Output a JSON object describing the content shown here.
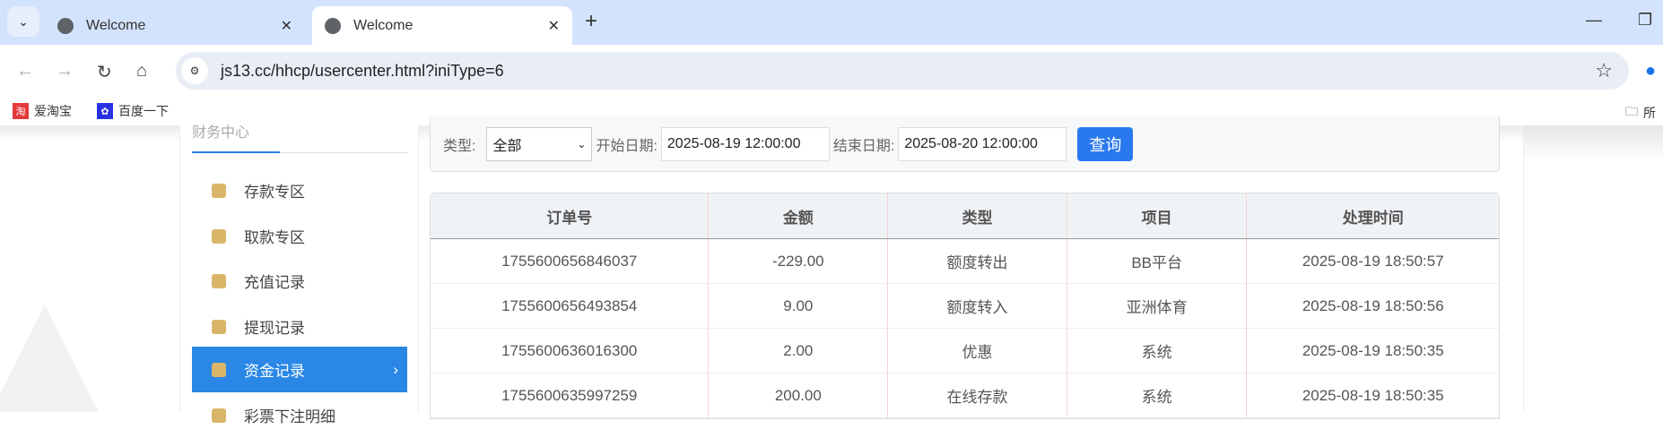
{
  "browser": {
    "tabs": [
      {
        "title": "Welcome",
        "active": false
      },
      {
        "title": "Welcome",
        "active": true
      }
    ],
    "url": "js13.cc/hhcp/usercenter.html?iniType=6",
    "bookmarks": [
      {
        "label": "爱淘宝",
        "icon": "taobao-icon",
        "color": "#e4393c",
        "glyph": "淘"
      },
      {
        "label": "百度一下",
        "icon": "baidu-paw-icon",
        "color": "#2932e1",
        "glyph": "🐾"
      }
    ],
    "bookmarks_folder": "所"
  },
  "sidebar": {
    "title": "财务中心",
    "items": [
      {
        "label": "存款专区",
        "icon": "deposit-card-icon",
        "active": false
      },
      {
        "label": "取款专区",
        "icon": "withdraw-hand-icon",
        "active": false
      },
      {
        "label": "充值记录",
        "icon": "money-bag-icon",
        "active": false
      },
      {
        "label": "提现记录",
        "icon": "wallet-icon",
        "active": false
      },
      {
        "label": "资金记录",
        "icon": "funds-icon",
        "active": true
      },
      {
        "label": "彩票下注明细",
        "icon": "lottery-icon",
        "active": false
      }
    ]
  },
  "filter": {
    "type_label": "类型:",
    "type_value": "全部",
    "start_label": "开始日期:",
    "start_value": "2025-08-19 12:00:00",
    "end_label": "结束日期:",
    "end_value": "2025-08-20 12:00:00",
    "query_label": "查询",
    "accent": "#2a78ee"
  },
  "table": {
    "columns": [
      "订单号",
      "金额",
      "类型",
      "项目",
      "处理时间"
    ],
    "rows": [
      [
        "1755600656846037",
        "-229.00",
        "额度转出",
        "BB平台",
        "2025-08-19 18:50:57"
      ],
      [
        "1755600656493854",
        "9.00",
        "额度转入",
        "亚洲体育",
        "2025-08-19 18:50:56"
      ],
      [
        "1755600636016300",
        "2.00",
        "优惠",
        "系统",
        "2025-08-19 18:50:35"
      ],
      [
        "1755600635997259",
        "200.00",
        "在线存款",
        "系统",
        "2025-08-19 18:50:35"
      ]
    ]
  }
}
